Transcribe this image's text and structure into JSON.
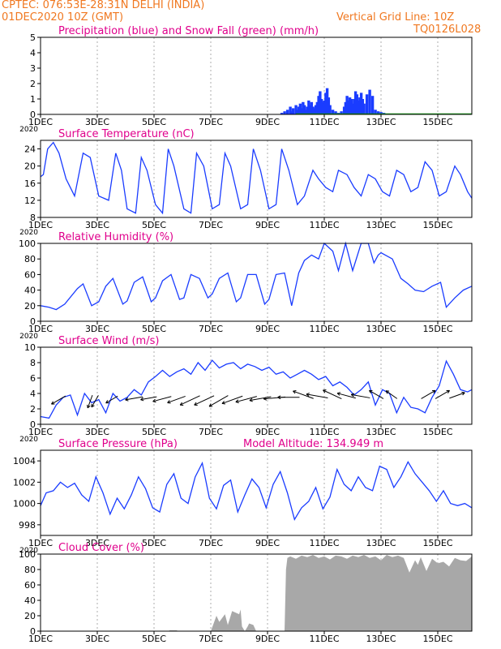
{
  "header": {
    "line1": "CPTEC:   076:53E-28:31N   DELHI (INDIA)",
    "line2": "01DEC2020 10Z (GMT)",
    "grid_note": "Vertical Grid Line: 10Z",
    "code": "TQ0126L028"
  },
  "colors": {
    "header": "#f07820",
    "titles": "#e0008c",
    "precip": "#1a3cff",
    "snow": "#18a818",
    "line": "#1a3cff",
    "cloud": "#a8a8a8",
    "wind": "#000000",
    "grid": "#777777"
  },
  "x_axis": {
    "range_days": [
      0,
      15.2
    ],
    "ticks": [
      0,
      2,
      4,
      6,
      8,
      10,
      12,
      14
    ],
    "tick_labels": [
      "1DEC",
      "3DEC",
      "5DEC",
      "7DEC",
      "9DEC",
      "11DEC",
      "13DEC",
      "15DEC"
    ],
    "year_label": "2020"
  },
  "chart_data": [
    {
      "type": "bar",
      "title": "Precipitation (blue) and Snow Fall (green) (mm/h)",
      "ylim": [
        0,
        5
      ],
      "yticks": [
        0,
        1,
        2,
        3,
        4,
        5
      ],
      "series": [
        {
          "name": "Precipitation",
          "x": [
            8.5,
            8.6,
            8.7,
            8.8,
            8.85,
            8.9,
            9.0,
            9.05,
            9.1,
            9.15,
            9.2,
            9.25,
            9.3,
            9.35,
            9.4,
            9.45,
            9.5,
            9.55,
            9.6,
            9.65,
            9.7,
            9.75,
            9.8,
            9.85,
            9.9,
            9.95,
            10.0,
            10.05,
            10.1,
            10.15,
            10.2,
            10.3,
            10.4,
            10.5,
            10.6,
            10.7,
            10.75,
            10.8,
            10.85,
            10.9,
            10.95,
            11.0,
            11.05,
            11.1,
            11.15,
            11.2,
            11.25,
            11.3,
            11.35,
            11.4,
            11.5,
            11.6,
            11.7,
            11.8,
            11.9,
            12.0,
            12.1,
            12.2
          ],
          "values": [
            0.1,
            0.2,
            0.3,
            0.5,
            0.2,
            0.4,
            0.6,
            0.3,
            0.5,
            0.7,
            0.4,
            0.8,
            0.6,
            0.3,
            0.5,
            0.9,
            0.6,
            0.8,
            0.5,
            0.4,
            0.6,
            0.8,
            1.2,
            1.5,
            1.0,
            0.8,
            0.9,
            1.4,
            1.7,
            1.1,
            0.6,
            0.3,
            0.2,
            0.1,
            0.2,
            0.5,
            0.8,
            1.2,
            0.9,
            1.1,
            1.0,
            0.7,
            1.0,
            1.5,
            1.3,
            0.9,
            1.1,
            1.4,
            1.0,
            0.7,
            1.3,
            1.6,
            1.2,
            0.3,
            0.2,
            0.15,
            0.1,
            0.05
          ]
        },
        {
          "name": "Snow Fall",
          "x": [
            9.0,
            15.2
          ],
          "values": [
            0,
            0
          ]
        }
      ]
    },
    {
      "type": "line",
      "title": "Surface Temperature (nC)",
      "ylim": [
        8,
        26
      ],
      "yticks": [
        8,
        12,
        16,
        20,
        24
      ],
      "x": [
        0,
        0.1,
        0.25,
        0.45,
        0.65,
        0.9,
        1.2,
        1.5,
        1.75,
        2.05,
        2.4,
        2.65,
        2.85,
        3.05,
        3.35,
        3.55,
        3.75,
        4.05,
        4.3,
        4.5,
        4.7,
        5.05,
        5.3,
        5.5,
        5.75,
        6.05,
        6.3,
        6.5,
        6.7,
        7.05,
        7.3,
        7.5,
        7.75,
        8.05,
        8.3,
        8.5,
        8.75,
        9.05,
        9.3,
        9.6,
        9.8,
        10.05,
        10.3,
        10.5,
        10.8,
        11.05,
        11.3,
        11.55,
        11.8,
        12.05,
        12.3,
        12.55,
        12.8,
        13.05,
        13.3,
        13.55,
        13.8,
        14.05,
        14.3,
        14.6,
        14.8,
        15.05,
        15.2
      ],
      "values": [
        17.5,
        18,
        24,
        25.5,
        23,
        17,
        13,
        23,
        22,
        13,
        12,
        23,
        19,
        10,
        9,
        22,
        19,
        11,
        9,
        24,
        20,
        10,
        9,
        23,
        20,
        10,
        11,
        23,
        20,
        10,
        11,
        24,
        19,
        10,
        11,
        24,
        19,
        11,
        13,
        19,
        17,
        15,
        14,
        19,
        18,
        15,
        13,
        18,
        17,
        14,
        13,
        19,
        18,
        14,
        15,
        21,
        19,
        13,
        14,
        20,
        18,
        14,
        12.5
      ]
    },
    {
      "type": "line",
      "title": "Relative Humidity (%)",
      "ylim": [
        0,
        100
      ],
      "yticks": [
        0,
        20,
        40,
        60,
        80,
        100
      ],
      "x": [
        0,
        0.3,
        0.55,
        0.85,
        1.3,
        1.5,
        1.8,
        2.05,
        2.3,
        2.55,
        2.9,
        3.05,
        3.3,
        3.6,
        3.9,
        4.05,
        4.3,
        4.6,
        4.9,
        5.05,
        5.3,
        5.6,
        5.9,
        6.05,
        6.3,
        6.6,
        6.9,
        7.05,
        7.3,
        7.6,
        7.9,
        8.05,
        8.3,
        8.6,
        8.85,
        9.1,
        9.3,
        9.55,
        9.8,
        10.0,
        10.3,
        10.5,
        10.75,
        11.0,
        11.3,
        11.55,
        11.75,
        11.9,
        12.0,
        12.4,
        12.7,
        12.95,
        13.2,
        13.5,
        13.8,
        14.1,
        14.3,
        14.6,
        14.9,
        15.2
      ],
      "values": [
        20,
        18,
        15,
        22,
        42,
        48,
        20,
        25,
        45,
        55,
        22,
        26,
        50,
        57,
        25,
        30,
        52,
        60,
        28,
        30,
        60,
        55,
        30,
        35,
        55,
        62,
        25,
        30,
        60,
        60,
        22,
        28,
        60,
        62,
        20,
        62,
        78,
        85,
        80,
        100,
        90,
        65,
        100,
        65,
        100,
        100,
        75,
        85,
        88,
        80,
        55,
        48,
        40,
        38,
        45,
        50,
        18,
        30,
        40,
        45
      ]
    },
    {
      "type": "line",
      "title": "Surface Wind (m/s)",
      "ylim": [
        0,
        10
      ],
      "yticks": [
        0,
        2,
        4,
        6,
        8,
        10
      ],
      "x": [
        0,
        0.3,
        0.55,
        0.8,
        1.05,
        1.3,
        1.55,
        1.8,
        2.05,
        2.3,
        2.55,
        2.8,
        3.05,
        3.3,
        3.55,
        3.8,
        4.05,
        4.3,
        4.55,
        4.8,
        5.05,
        5.3,
        5.55,
        5.8,
        6.05,
        6.3,
        6.55,
        6.8,
        7.05,
        7.3,
        7.55,
        7.8,
        8.05,
        8.3,
        8.55,
        8.8,
        9.05,
        9.3,
        9.55,
        9.8,
        10.05,
        10.3,
        10.55,
        10.8,
        11.05,
        11.3,
        11.55,
        11.8,
        12.05,
        12.3,
        12.55,
        12.8,
        13.05,
        13.3,
        13.55,
        13.8,
        14.05,
        14.3,
        14.55,
        14.8,
        15.05,
        15.2
      ],
      "values": [
        1,
        0.8,
        2.5,
        3.5,
        3.8,
        1.2,
        4,
        2.8,
        3.2,
        1.5,
        4,
        3,
        3.5,
        4.5,
        3.8,
        5.5,
        6.2,
        7,
        6.2,
        6.8,
        7.2,
        6.5,
        8,
        7,
        8.3,
        7.3,
        7.8,
        8,
        7.2,
        7.8,
        7.5,
        7,
        7.4,
        6.5,
        6.8,
        6,
        6.5,
        7,
        6.5,
        5.8,
        6.2,
        5,
        5.5,
        4.8,
        3.8,
        4.5,
        5.5,
        2.5,
        4.5,
        4,
        1.5,
        3.5,
        2.2,
        2,
        1.5,
        3.5,
        5,
        8.2,
        6.5,
        4.5,
        4.2,
        4.5
      ]
    },
    {
      "type": "line",
      "title": "Surface Pressure (hPa)",
      "annotation": "Model Altitude: 134.949 m",
      "ylim": [
        997,
        1005
      ],
      "yticks": [
        998,
        1000,
        1002,
        1004
      ],
      "x": [
        0,
        0.2,
        0.45,
        0.7,
        0.95,
        1.2,
        1.45,
        1.7,
        1.95,
        2.2,
        2.45,
        2.7,
        2.95,
        3.2,
        3.45,
        3.7,
        3.95,
        4.2,
        4.45,
        4.7,
        4.95,
        5.2,
        5.45,
        5.7,
        5.95,
        6.2,
        6.45,
        6.7,
        6.95,
        7.2,
        7.45,
        7.7,
        7.95,
        8.2,
        8.45,
        8.7,
        8.95,
        9.2,
        9.45,
        9.7,
        9.95,
        10.2,
        10.45,
        10.7,
        10.95,
        11.2,
        11.45,
        11.7,
        11.95,
        12.2,
        12.45,
        12.7,
        12.95,
        13.2,
        13.45,
        13.7,
        13.95,
        14.2,
        14.45,
        14.7,
        14.95,
        15.2
      ],
      "values": [
        999.8,
        1001,
        1001.2,
        1002,
        1001.5,
        1001.9,
        1000.8,
        1000.2,
        1002.5,
        1001,
        999,
        1000.5,
        999.5,
        1000.8,
        1002.5,
        1001.4,
        999.6,
        999.2,
        1001.8,
        1002.8,
        1000.5,
        1000,
        1002.5,
        1003.8,
        1000.5,
        999.5,
        1001.7,
        1002.2,
        999.2,
        1000.8,
        1002.3,
        1001.5,
        999.6,
        1001.8,
        1003,
        1001,
        998.5,
        999.6,
        1000.2,
        1001.5,
        999.5,
        1000.6,
        1003.2,
        1001.8,
        1001.2,
        1002.5,
        1001.5,
        1001.2,
        1003.5,
        1003.2,
        1001.5,
        1002.5,
        1003.9,
        1002.8,
        1002,
        1001.2,
        1000.2,
        1001.2,
        1000,
        999.8,
        1000,
        999.6
      ]
    },
    {
      "type": "area",
      "title": "Cloud Cover (%)",
      "ylim": [
        0,
        100
      ],
      "yticks": [
        0,
        20,
        40,
        60,
        80,
        100
      ],
      "x": [
        0,
        4.5,
        4.55,
        4.8,
        4.85,
        6.0,
        6.05,
        6.2,
        6.3,
        6.5,
        6.6,
        6.65,
        6.75,
        7.0,
        7.05,
        7.1,
        7.2,
        7.3,
        7.35,
        7.5,
        7.6,
        7.7,
        8.6,
        8.65,
        8.7,
        8.8,
        9.0,
        9.2,
        9.4,
        9.6,
        9.8,
        10.0,
        10.2,
        10.4,
        10.6,
        10.8,
        11.0,
        11.2,
        11.4,
        11.6,
        11.8,
        12.0,
        12.2,
        12.4,
        12.6,
        12.8,
        13.0,
        13.2,
        13.3,
        13.4,
        13.6,
        13.8,
        14.0,
        14.2,
        14.4,
        14.6,
        14.8,
        15.0,
        15.2
      ],
      "values": [
        0,
        0,
        1,
        1,
        0,
        0,
        5,
        20,
        12,
        22,
        8,
        14,
        26,
        22,
        28,
        6,
        0,
        6,
        10,
        8,
        0,
        0,
        0,
        80,
        95,
        97,
        94,
        98,
        96,
        99,
        95,
        97,
        93,
        98,
        97,
        94,
        98,
        96,
        99,
        95,
        97,
        92,
        99,
        96,
        98,
        95,
        76,
        92,
        86,
        96,
        78,
        94,
        88,
        90,
        84,
        95,
        92,
        91,
        97
      ]
    }
  ],
  "wind_vectors": [
    {
      "day": 0.8,
      "dir": -150,
      "len": 1.2
    },
    {
      "day": 1.8,
      "dir": -110,
      "len": 1.0
    },
    {
      "day": 2.0,
      "dir": -120,
      "len": 1.0
    },
    {
      "day": 2.65,
      "dir": -150,
      "len": 1.0
    },
    {
      "day": 3.5,
      "dir": -170,
      "len": 1.3
    },
    {
      "day": 4.0,
      "dir": -170,
      "len": 1.2
    },
    {
      "day": 4.5,
      "dir": -165,
      "len": 1.4
    },
    {
      "day": 5.0,
      "dir": -160,
      "len": 1.4
    },
    {
      "day": 5.5,
      "dir": -155,
      "len": 1.6
    },
    {
      "day": 6.0,
      "dir": -155,
      "len": 1.6
    },
    {
      "day": 6.5,
      "dir": -150,
      "len": 1.6
    },
    {
      "day": 7.0,
      "dir": -160,
      "len": 1.6
    },
    {
      "day": 7.5,
      "dir": -165,
      "len": 1.6
    },
    {
      "day": 8.0,
      "dir": -170,
      "len": 1.6
    },
    {
      "day": 8.5,
      "dir": -175,
      "len": 1.6
    },
    {
      "day": 9.0,
      "dir": 180,
      "len": 1.6
    },
    {
      "day": 9.5,
      "dir": 160,
      "len": 1.6
    },
    {
      "day": 10.0,
      "dir": 170,
      "len": 1.6
    },
    {
      "day": 10.5,
      "dir": 155,
      "len": 1.5
    },
    {
      "day": 11.0,
      "dir": 165,
      "len": 1.4
    },
    {
      "day": 11.5,
      "dir": 170,
      "len": 1.4
    },
    {
      "day": 12.0,
      "dir": 150,
      "len": 1.2
    },
    {
      "day": 12.5,
      "dir": 145,
      "len": 1.0
    },
    {
      "day": 13.5,
      "dir": 30,
      "len": 1.2
    },
    {
      "day": 14.0,
      "dir": 30,
      "len": 1.2
    },
    {
      "day": 14.5,
      "dir": 20,
      "len": 1.2
    }
  ]
}
